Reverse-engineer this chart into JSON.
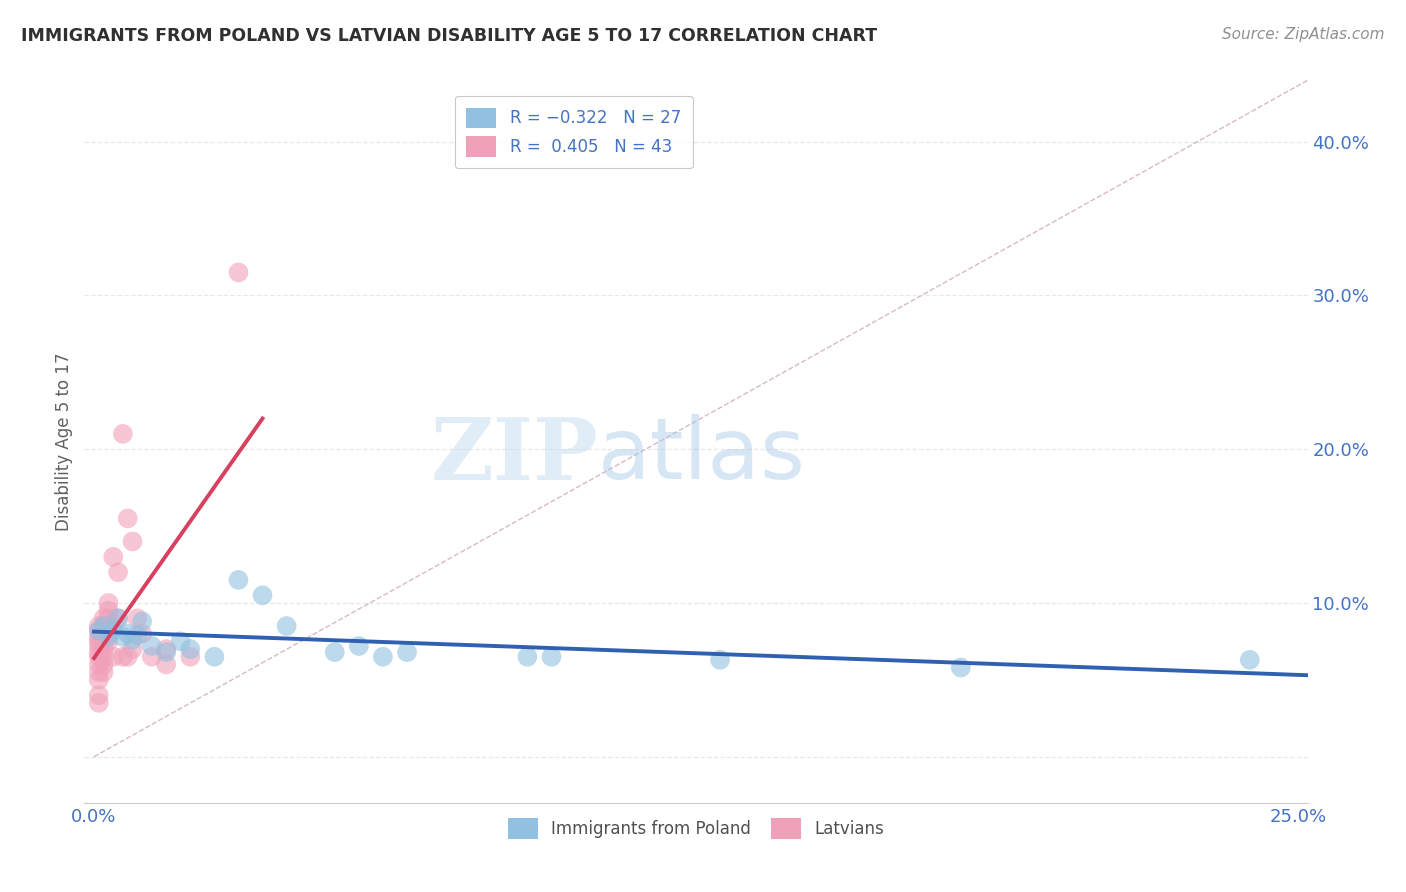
{
  "title": "IMMIGRANTS FROM POLAND VS LATVIAN DISABILITY AGE 5 TO 17 CORRELATION CHART",
  "source": "Source: ZipAtlas.com",
  "ylabel": "Disability Age 5 to 17",
  "legend_labels": [
    "Immigrants from Poland",
    "Latvians"
  ],
  "blue_color": "#92c0e0",
  "pink_color": "#f0a0b8",
  "blue_line_color": "#3060b0",
  "pink_line_color": "#d84060",
  "ref_line_color": "#d8b8c8",
  "title_color": "#303030",
  "source_color": "#909090",
  "axis_tick_color": "#4472c4",
  "ylabel_color": "#606060",
  "xlim": [
    -0.002,
    0.252
  ],
  "ylim": [
    -0.03,
    0.44
  ],
  "xticks": [
    0.0,
    0.05,
    0.1,
    0.15,
    0.2,
    0.25
  ],
  "yticks": [
    0.0,
    0.1,
    0.2,
    0.3,
    0.4
  ],
  "blue_scatter": [
    [
      0.001,
      0.082
    ],
    [
      0.002,
      0.085
    ],
    [
      0.003,
      0.078
    ],
    [
      0.004,
      0.082
    ],
    [
      0.005,
      0.09
    ],
    [
      0.006,
      0.078
    ],
    [
      0.007,
      0.08
    ],
    [
      0.008,
      0.076
    ],
    [
      0.009,
      0.079
    ],
    [
      0.01,
      0.088
    ],
    [
      0.012,
      0.072
    ],
    [
      0.015,
      0.068
    ],
    [
      0.018,
      0.075
    ],
    [
      0.02,
      0.07
    ],
    [
      0.025,
      0.065
    ],
    [
      0.03,
      0.115
    ],
    [
      0.035,
      0.105
    ],
    [
      0.04,
      0.085
    ],
    [
      0.05,
      0.068
    ],
    [
      0.055,
      0.072
    ],
    [
      0.06,
      0.065
    ],
    [
      0.065,
      0.068
    ],
    [
      0.09,
      0.065
    ],
    [
      0.095,
      0.065
    ],
    [
      0.13,
      0.063
    ],
    [
      0.18,
      0.058
    ],
    [
      0.24,
      0.063
    ]
  ],
  "pink_scatter": [
    [
      0.001,
      0.085
    ],
    [
      0.001,
      0.082
    ],
    [
      0.001,
      0.078
    ],
    [
      0.001,
      0.075
    ],
    [
      0.001,
      0.072
    ],
    [
      0.001,
      0.068
    ],
    [
      0.001,
      0.065
    ],
    [
      0.001,
      0.06
    ],
    [
      0.001,
      0.055
    ],
    [
      0.001,
      0.05
    ],
    [
      0.001,
      0.04
    ],
    [
      0.001,
      0.035
    ],
    [
      0.002,
      0.09
    ],
    [
      0.002,
      0.085
    ],
    [
      0.002,
      0.08
    ],
    [
      0.002,
      0.075
    ],
    [
      0.002,
      0.07
    ],
    [
      0.002,
      0.065
    ],
    [
      0.002,
      0.06
    ],
    [
      0.002,
      0.055
    ],
    [
      0.003,
      0.1
    ],
    [
      0.003,
      0.095
    ],
    [
      0.003,
      0.09
    ],
    [
      0.003,
      0.085
    ],
    [
      0.003,
      0.08
    ],
    [
      0.003,
      0.075
    ],
    [
      0.004,
      0.13
    ],
    [
      0.004,
      0.065
    ],
    [
      0.005,
      0.12
    ],
    [
      0.005,
      0.09
    ],
    [
      0.006,
      0.21
    ],
    [
      0.006,
      0.065
    ],
    [
      0.007,
      0.155
    ],
    [
      0.007,
      0.065
    ],
    [
      0.008,
      0.14
    ],
    [
      0.008,
      0.07
    ],
    [
      0.009,
      0.09
    ],
    [
      0.01,
      0.08
    ],
    [
      0.012,
      0.065
    ],
    [
      0.015,
      0.07
    ],
    [
      0.015,
      0.06
    ],
    [
      0.02,
      0.065
    ],
    [
      0.03,
      0.315
    ]
  ],
  "watermark_zip": "ZIP",
  "watermark_atlas": "atlas",
  "background_color": "#ffffff",
  "grid_color": "#e8e8e8",
  "grid_style": "--"
}
